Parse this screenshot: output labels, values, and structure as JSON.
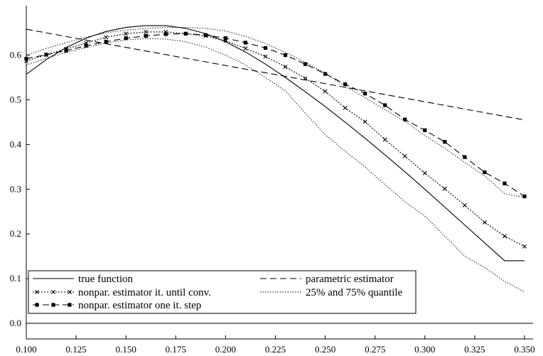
{
  "chart_data": {
    "type": "line",
    "title": "",
    "xlabel": "",
    "ylabel": "",
    "xlim": [
      0.1,
      0.35
    ],
    "ylim": [
      0.0,
      0.66
    ],
    "grid": false,
    "legend_placement": "bottom-left",
    "x_ticks": [
      "0.100",
      "0.125",
      "0.150",
      "0.175",
      "0.200",
      "0.225",
      "0.250",
      "0.275",
      "0.300",
      "0.325",
      "0.350"
    ],
    "y_ticks": [
      "0.0",
      "0.1",
      "0.2",
      "0.3",
      "0.4",
      "0.5",
      "0.6"
    ],
    "series": [
      {
        "name": "true function",
        "style": "solid",
        "marker": "none",
        "x": [
          0.1,
          0.11,
          0.12,
          0.13,
          0.14,
          0.15,
          0.16,
          0.17,
          0.18,
          0.19,
          0.2,
          0.21,
          0.22,
          0.23,
          0.24,
          0.25,
          0.26,
          0.27,
          0.28,
          0.29,
          0.3,
          0.31,
          0.32,
          0.33,
          0.34,
          0.35
        ],
        "y": [
          0.557,
          0.59,
          0.617,
          0.638,
          0.653,
          0.662,
          0.666,
          0.666,
          0.66,
          0.648,
          0.63,
          0.607,
          0.58,
          0.55,
          0.518,
          0.485,
          0.45,
          0.414,
          0.377,
          0.339,
          0.3,
          0.26,
          0.22,
          0.18,
          0.14,
          0.14
        ]
      },
      {
        "name": "nonpar. estimator it. until conv.",
        "style": "dotted",
        "marker": "x",
        "x": [
          0.1,
          0.11,
          0.12,
          0.13,
          0.14,
          0.15,
          0.16,
          0.17,
          0.18,
          0.19,
          0.2,
          0.21,
          0.22,
          0.23,
          0.24,
          0.25,
          0.26,
          0.27,
          0.28,
          0.29,
          0.3,
          0.31,
          0.32,
          0.33,
          0.34,
          0.35
        ],
        "y": [
          0.587,
          0.601,
          0.614,
          0.627,
          0.64,
          0.648,
          0.652,
          0.652,
          0.648,
          0.643,
          0.632,
          0.615,
          0.597,
          0.574,
          0.548,
          0.519,
          0.482,
          0.451,
          0.411,
          0.374,
          0.336,
          0.301,
          0.264,
          0.226,
          0.195,
          0.172
        ]
      },
      {
        "name": "parametric estimator",
        "style": "dashed",
        "marker": "none",
        "x": [
          0.1,
          0.35
        ],
        "y": [
          0.658,
          0.455
        ]
      },
      {
        "name": "nonpar. estimator one it. step",
        "style": "dashed",
        "marker": "square",
        "x": [
          0.1,
          0.11,
          0.12,
          0.13,
          0.14,
          0.15,
          0.16,
          0.17,
          0.18,
          0.19,
          0.2,
          0.21,
          0.22,
          0.23,
          0.24,
          0.25,
          0.26,
          0.27,
          0.28,
          0.29,
          0.3,
          0.31,
          0.32,
          0.33,
          0.34,
          0.35
        ],
        "y": [
          0.592,
          0.601,
          0.61,
          0.621,
          0.63,
          0.638,
          0.643,
          0.647,
          0.648,
          0.645,
          0.638,
          0.628,
          0.616,
          0.6,
          0.58,
          0.558,
          0.535,
          0.514,
          0.488,
          0.456,
          0.432,
          0.406,
          0.372,
          0.338,
          0.313,
          0.284
        ]
      },
      {
        "name": "25% and 75% quantile",
        "style": "dotted-thin",
        "marker": "none",
        "x": [
          0.1,
          0.11,
          0.12,
          0.13,
          0.14,
          0.15,
          0.16,
          0.17,
          0.18,
          0.19,
          0.2,
          0.21,
          0.22,
          0.23,
          0.24,
          0.25,
          0.26,
          0.27,
          0.28,
          0.29,
          0.3,
          0.31,
          0.32,
          0.33,
          0.34,
          0.35
        ],
        "y": [
          0.6,
          0.615,
          0.628,
          0.64,
          0.65,
          0.656,
          0.66,
          0.662,
          0.662,
          0.66,
          0.654,
          0.642,
          0.626,
          0.606,
          0.584,
          0.56,
          0.53,
          0.505,
          0.478,
          0.452,
          0.42,
          0.392,
          0.36,
          0.33,
          0.29,
          0.282
        ]
      },
      {
        "name": "",
        "style": "dotted-thin",
        "marker": "none",
        "x": [
          0.1,
          0.11,
          0.12,
          0.13,
          0.14,
          0.15,
          0.16,
          0.17,
          0.18,
          0.19,
          0.2,
          0.21,
          0.22,
          0.23,
          0.24,
          0.25,
          0.26,
          0.27,
          0.28,
          0.29,
          0.3,
          0.31,
          0.32,
          0.33,
          0.34,
          0.35
        ],
        "y": [
          0.578,
          0.593,
          0.606,
          0.617,
          0.627,
          0.634,
          0.637,
          0.636,
          0.63,
          0.618,
          0.6,
          0.578,
          0.55,
          0.52,
          0.47,
          0.422,
          0.385,
          0.35,
          0.31,
          0.272,
          0.24,
          0.195,
          0.15,
          0.125,
          0.094,
          0.07
        ]
      }
    ],
    "legend": [
      {
        "label": "true function",
        "style": "solid",
        "marker": "none"
      },
      {
        "label": "parametric estimator",
        "style": "dashed",
        "marker": "none"
      },
      {
        "label": "nonpar. estimator it. until conv.",
        "style": "dotted",
        "marker": "x"
      },
      {
        "label": "25% and 75% quantile",
        "style": "dotted-thin",
        "marker": "none"
      },
      {
        "label": "nonpar. estimator one it. step",
        "style": "dashed",
        "marker": "square"
      }
    ]
  }
}
